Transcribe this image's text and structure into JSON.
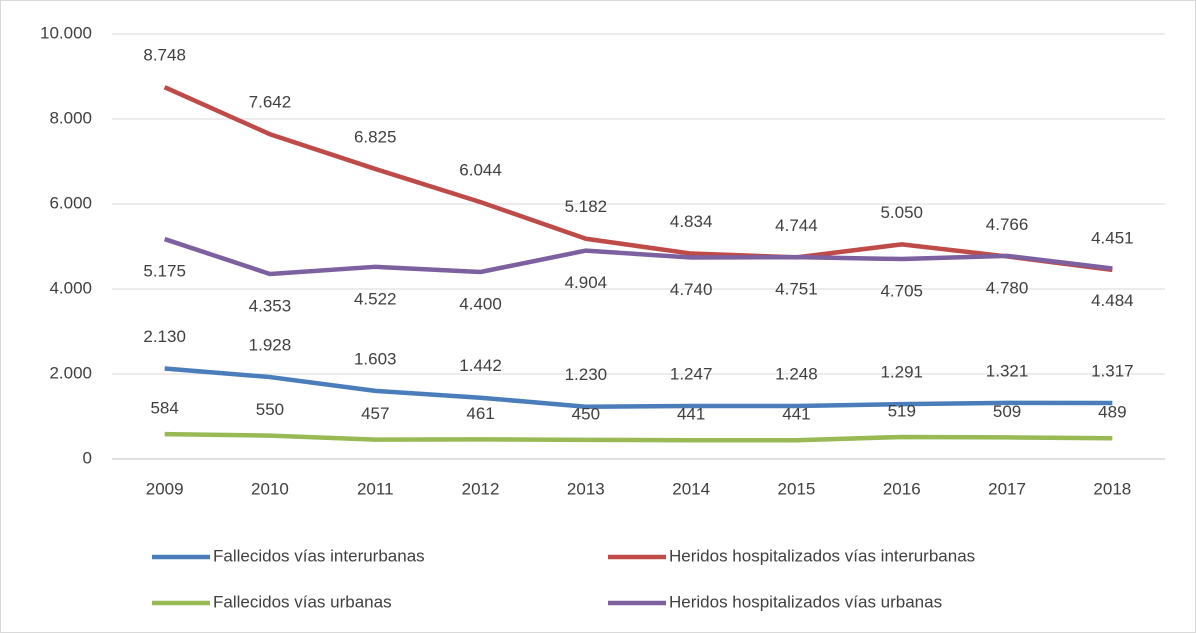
{
  "chart_data": {
    "type": "line",
    "categories": [
      "2009",
      "2010",
      "2011",
      "2012",
      "2013",
      "2014",
      "2015",
      "2016",
      "2017",
      "2018"
    ],
    "series": [
      {
        "name": "Fallecidos vías interurbanas",
        "color": "#4a7ebb",
        "values": [
          2130,
          1928,
          1603,
          1442,
          1230,
          1247,
          1248,
          1291,
          1321,
          1317
        ],
        "value_labels": [
          "2.130",
          "1.928",
          "1.603",
          "1.442",
          "1.230",
          "1.247",
          "1.248",
          "1.291",
          "1.321",
          "1.317"
        ]
      },
      {
        "name": "Heridos hospitalizados vías interurbanas",
        "color": "#be4b48",
        "values": [
          8748,
          7642,
          6825,
          6044,
          5182,
          4834,
          4744,
          5050,
          4766,
          4451
        ],
        "value_labels": [
          "8.748",
          "7.642",
          "6.825",
          "6.044",
          "5.182",
          "4.834",
          "4.744",
          "5.050",
          "4.766",
          "4.451"
        ]
      },
      {
        "name": "Fallecidos vías urbanas",
        "color": "#98b954",
        "values": [
          584,
          550,
          457,
          461,
          450,
          441,
          441,
          519,
          509,
          489
        ],
        "value_labels": [
          "584",
          "550",
          "457",
          "461",
          "450",
          "441",
          "441",
          "519",
          "509",
          "489"
        ]
      },
      {
        "name": "Heridos hospitalizados vías urbanas",
        "color": "#7d60a0",
        "values": [
          5175,
          4353,
          4522,
          4400,
          4904,
          4740,
          4751,
          4705,
          4780,
          4484
        ],
        "value_labels": [
          "5.175",
          "4.353",
          "4.522",
          "4.400",
          "4.904",
          "4.740",
          "4.751",
          "4.705",
          "4.780",
          "4.484"
        ]
      }
    ],
    "ylim": [
      0,
      10000
    ],
    "yticks": [
      0,
      {
        "value": 2000,
        "label": "2.000"
      },
      {
        "value": 4000,
        "label": "4.000"
      },
      {
        "value": 6000,
        "label": "6.000"
      },
      {
        "value": 8000,
        "label": "8.000"
      },
      {
        "value": 10000,
        "label": "10.000"
      }
    ],
    "grid": true,
    "legend": "bottom"
  }
}
